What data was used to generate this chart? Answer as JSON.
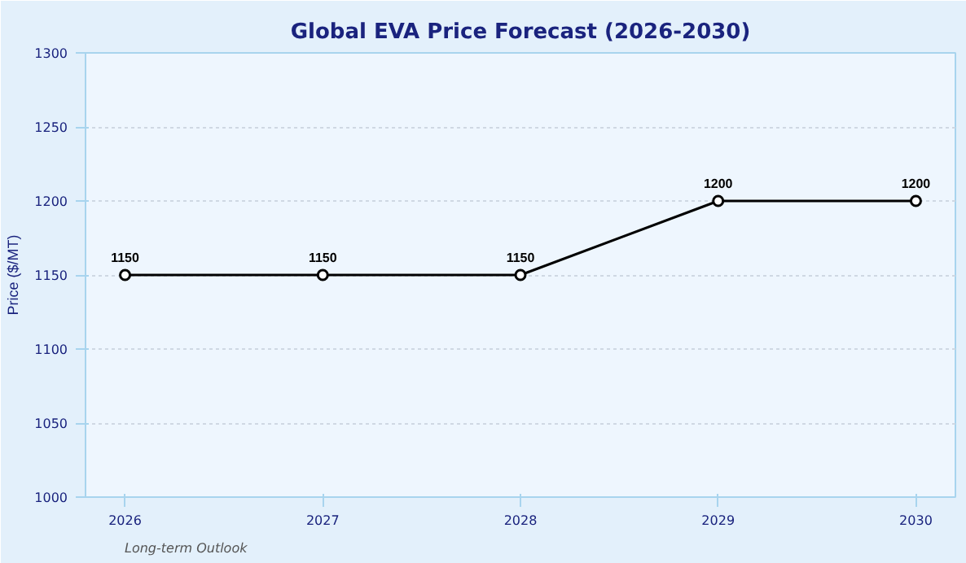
{
  "chart_data": {
    "type": "line",
    "title": "Global EVA Price Forecast (2026-2030)",
    "ylabel": "Price ($/MT)",
    "x": [
      2026,
      2027,
      2028,
      2029,
      2030
    ],
    "series": [
      {
        "color": "#000000",
        "values": [
          1150,
          1150,
          1150,
          1200,
          1200
        ]
      }
    ],
    "xlim": [
      2025.8,
      2030.2
    ],
    "xticks": [
      2026,
      2027,
      2028,
      2029,
      2030
    ],
    "ylim": [
      1000,
      1300
    ],
    "yticks": [
      1000,
      1050,
      1100,
      1150,
      1200,
      1250,
      1300
    ],
    "grid": "y",
    "marker": "circle",
    "line_style": "solid",
    "data_labels": true,
    "annotations": [
      "Long-term Outlook"
    ]
  }
}
